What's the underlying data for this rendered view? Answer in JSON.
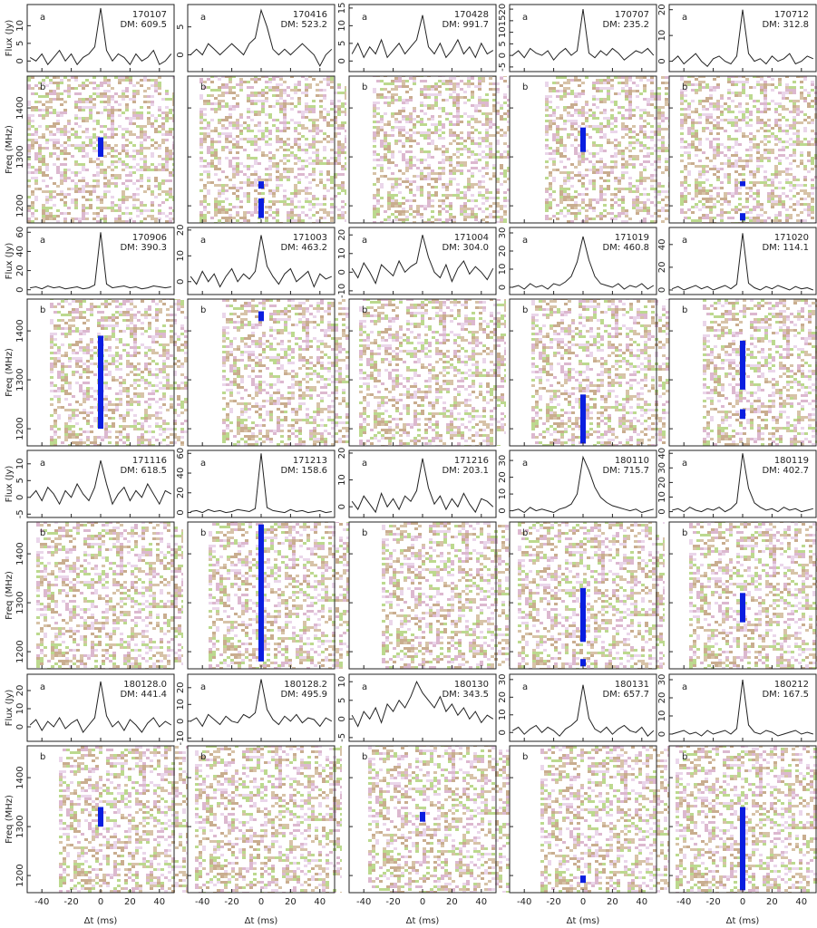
{
  "chart_data": {
    "type": "line",
    "panel_a": "a",
    "panel_b": "b",
    "flux_label": "Flux (Jy)",
    "freq_label": "Freq (MHz)",
    "xlabel": "Δt (ms)",
    "xlim": [
      -50,
      50
    ],
    "xticks": [
      -40,
      -20,
      0,
      20,
      40
    ],
    "x": [
      -48,
      -44,
      -40,
      -36,
      -32,
      -28,
      -24,
      -20,
      -16,
      -12,
      -8,
      -4,
      0,
      4,
      8,
      12,
      16,
      20,
      24,
      28,
      32,
      36,
      40,
      44,
      48
    ],
    "freq_ylim": [
      1165,
      1465
    ],
    "freq_yticks": [
      1200,
      1300,
      1400
    ],
    "line_color": "#222222",
    "burst_color": "#0a1ee0",
    "panels": [
      {
        "name": "170107",
        "dm": "DM: 609.5",
        "ylim": [
          -3,
          16
        ],
        "yticks": [
          0,
          5,
          10
        ],
        "values": [
          1,
          0,
          2,
          -1,
          1,
          3,
          0,
          2,
          -1,
          1,
          2,
          4,
          15,
          3,
          0,
          2,
          1,
          -1,
          2,
          0,
          1,
          3,
          -1,
          0,
          2
        ],
        "bursts": [
          [
            1300,
            1340
          ]
        ]
      },
      {
        "name": "170416",
        "dm": "DM: 523.2",
        "ylim": [
          -3,
          9
        ],
        "yticks": [
          0,
          5
        ],
        "values": [
          0,
          1,
          0,
          2,
          1,
          0,
          1,
          2,
          1,
          0,
          2,
          3,
          8,
          5,
          1,
          0,
          1,
          0,
          1,
          2,
          1,
          0,
          -2,
          0,
          1
        ],
        "bursts": [
          [
            1175,
            1215
          ],
          [
            1235,
            1250
          ]
        ]
      },
      {
        "name": "170428",
        "dm": "DM: 991.7",
        "ylim": [
          -3,
          16
        ],
        "yticks": [
          0,
          5,
          10,
          15
        ],
        "values": [
          2,
          5,
          1,
          4,
          2,
          6,
          1,
          3,
          5,
          2,
          4,
          6,
          13,
          4,
          2,
          5,
          1,
          3,
          6,
          2,
          4,
          1,
          5,
          2,
          3
        ],
        "bursts": []
      },
      {
        "name": "170707",
        "dm": "DM: 235.2",
        "ylim": [
          -7,
          22
        ],
        "yticks": [
          -5,
          0,
          5,
          10,
          15,
          20
        ],
        "values": [
          0,
          2,
          -1,
          3,
          1,
          0,
          2,
          -2,
          1,
          3,
          0,
          2,
          20,
          1,
          -1,
          2,
          0,
          3,
          1,
          -2,
          0,
          2,
          1,
          3,
          0
        ],
        "bursts": [
          [
            1310,
            1360
          ]
        ]
      },
      {
        "name": "170712",
        "dm": "DM: 312.8",
        "ylim": [
          -4,
          22
        ],
        "yticks": [
          0,
          10,
          20
        ],
        "values": [
          0,
          2,
          -1,
          1,
          3,
          0,
          -2,
          1,
          2,
          0,
          -1,
          2,
          20,
          3,
          0,
          1,
          -1,
          2,
          0,
          1,
          3,
          -1,
          0,
          2,
          1
        ],
        "bursts": [
          [
            1170,
            1185
          ],
          [
            1240,
            1250
          ]
        ]
      },
      {
        "name": "170906",
        "dm": "DM: 390.3",
        "ylim": [
          -5,
          65
        ],
        "yticks": [
          0,
          20,
          40,
          60
        ],
        "values": [
          2,
          3,
          1,
          4,
          2,
          3,
          1,
          2,
          3,
          1,
          2,
          5,
          60,
          6,
          2,
          3,
          4,
          2,
          3,
          1,
          2,
          4,
          3,
          2,
          3
        ],
        "bursts": [
          [
            1200,
            1390
          ]
        ]
      },
      {
        "name": "171003",
        "dm": "DM: 463.2",
        "ylim": [
          -5,
          21
        ],
        "yticks": [
          0,
          10,
          20
        ],
        "values": [
          2,
          -1,
          4,
          0,
          3,
          -2,
          2,
          5,
          0,
          3,
          1,
          4,
          18,
          6,
          2,
          -1,
          3,
          5,
          0,
          2,
          4,
          -2,
          3,
          1,
          2
        ],
        "bursts": [
          [
            1420,
            1440
          ]
        ]
      },
      {
        "name": "171004",
        "dm": "DM: 304.0",
        "ylim": [
          -12,
          24
        ],
        "yticks": [
          -10,
          0,
          10,
          20
        ],
        "values": [
          2,
          -3,
          5,
          0,
          -6,
          4,
          1,
          -2,
          6,
          0,
          3,
          5,
          20,
          8,
          0,
          -3,
          4,
          -5,
          2,
          6,
          -1,
          3,
          0,
          -4,
          2
        ],
        "bursts": []
      },
      {
        "name": "171019",
        "dm": "DM: 460.8",
        "ylim": [
          -4,
          33
        ],
        "yticks": [
          0,
          10,
          20,
          30
        ],
        "values": [
          0,
          1,
          -1,
          2,
          0,
          1,
          -1,
          2,
          1,
          3,
          6,
          14,
          28,
          15,
          6,
          2,
          1,
          0,
          2,
          -1,
          1,
          0,
          2,
          -1,
          1
        ],
        "bursts": [
          [
            1170,
            1270
          ]
        ]
      },
      {
        "name": "171020",
        "dm": "DM: 114.1",
        "ylim": [
          -4,
          55
        ],
        "yticks": [
          0,
          20,
          40
        ],
        "values": [
          1,
          3,
          0,
          2,
          4,
          1,
          3,
          0,
          2,
          4,
          1,
          5,
          50,
          6,
          2,
          0,
          3,
          1,
          4,
          2,
          0,
          3,
          1,
          2,
          0
        ],
        "bursts": [
          [
            1220,
            1240
          ],
          [
            1280,
            1380
          ]
        ]
      },
      {
        "name": "171116",
        "dm": "DM: 618.5",
        "ylim": [
          -6,
          14
        ],
        "yticks": [
          -5,
          0,
          5,
          10
        ],
        "values": [
          0,
          2,
          -1,
          3,
          1,
          -2,
          2,
          0,
          4,
          1,
          -1,
          3,
          11,
          4,
          -2,
          1,
          3,
          -1,
          2,
          0,
          4,
          1,
          -2,
          2,
          1
        ],
        "bursts": []
      },
      {
        "name": "171213",
        "dm": "DM: 158.6",
        "ylim": [
          -5,
          63
        ],
        "yticks": [
          0,
          20,
          40,
          60
        ],
        "values": [
          1,
          2,
          0,
          3,
          1,
          2,
          0,
          1,
          3,
          2,
          1,
          4,
          60,
          5,
          2,
          1,
          0,
          3,
          1,
          2,
          0,
          1,
          2,
          0,
          1
        ],
        "bursts": [
          [
            1180,
            1460
          ]
        ]
      },
      {
        "name": "171216",
        "dm": "DM: 203.1",
        "ylim": [
          -4,
          21
        ],
        "yticks": [
          0,
          10,
          20
        ],
        "values": [
          2,
          -1,
          4,
          1,
          -2,
          5,
          0,
          3,
          -1,
          4,
          2,
          6,
          18,
          7,
          1,
          4,
          -1,
          3,
          0,
          5,
          1,
          -2,
          3,
          2,
          0
        ],
        "bursts": []
      },
      {
        "name": "180110",
        "dm": "DM: 715.7",
        "ylim": [
          -4,
          36
        ],
        "yticks": [
          0,
          10,
          20,
          30
        ],
        "values": [
          0,
          1,
          -1,
          2,
          0,
          1,
          0,
          -1,
          1,
          2,
          4,
          10,
          32,
          24,
          14,
          8,
          5,
          3,
          2,
          1,
          0,
          1,
          -1,
          0,
          1
        ],
        "bursts": [
          [
            1170,
            1185
          ],
          [
            1220,
            1330
          ]
        ]
      },
      {
        "name": "180119",
        "dm": "DM: 402.7",
        "ylim": [
          -4,
          42
        ],
        "yticks": [
          0,
          10,
          20,
          30,
          40
        ],
        "values": [
          1,
          2,
          0,
          3,
          1,
          0,
          2,
          1,
          3,
          0,
          2,
          6,
          40,
          16,
          6,
          3,
          1,
          2,
          0,
          3,
          1,
          2,
          0,
          1,
          2
        ],
        "bursts": [
          [
            1260,
            1320
          ]
        ]
      },
      {
        "name": "180128.0",
        "dm": "DM: 441.4",
        "ylim": [
          -8,
          29
        ],
        "yticks": [
          0,
          10,
          20
        ],
        "values": [
          1,
          4,
          -2,
          3,
          0,
          5,
          -1,
          2,
          4,
          -3,
          1,
          5,
          25,
          6,
          0,
          3,
          -2,
          4,
          1,
          -3,
          2,
          5,
          0,
          3,
          1
        ],
        "bursts": [
          [
            1300,
            1340
          ]
        ]
      },
      {
        "name": "180128.2",
        "dm": "DM: 495.9",
        "ylim": [
          -12,
          28
        ],
        "yticks": [
          -10,
          0,
          10,
          20
        ],
        "values": [
          0,
          2,
          -3,
          4,
          1,
          -2,
          3,
          0,
          -1,
          4,
          2,
          5,
          25,
          7,
          1,
          -2,
          3,
          0,
          4,
          -1,
          2,
          1,
          -3,
          2,
          0
        ],
        "bursts": []
      },
      {
        "name": "180130",
        "dm": "DM: 343.5",
        "ylim": [
          -6,
          12
        ],
        "yticks": [
          -5,
          0,
          5,
          10
        ],
        "values": [
          1,
          -2,
          2,
          0,
          3,
          -1,
          4,
          2,
          5,
          3,
          6,
          10,
          7,
          5,
          3,
          6,
          2,
          4,
          1,
          3,
          0,
          2,
          -1,
          1,
          0
        ],
        "bursts": [
          [
            1310,
            1330
          ]
        ]
      },
      {
        "name": "180131",
        "dm": "DM: 657.7",
        "ylim": [
          -5,
          33
        ],
        "yticks": [
          0,
          10,
          20,
          30
        ],
        "values": [
          1,
          3,
          -1,
          2,
          4,
          0,
          3,
          1,
          -2,
          2,
          4,
          7,
          27,
          8,
          2,
          0,
          3,
          -1,
          2,
          4,
          1,
          0,
          3,
          -2,
          1
        ],
        "bursts": [
          [
            1185,
            1200
          ]
        ]
      },
      {
        "name": "180212",
        "dm": "DM: 167.5",
        "ylim": [
          -4,
          33
        ],
        "yticks": [
          0,
          10,
          20,
          30
        ],
        "values": [
          0,
          1,
          2,
          0,
          1,
          -1,
          2,
          0,
          1,
          2,
          0,
          3,
          30,
          5,
          1,
          0,
          2,
          1,
          -1,
          0,
          1,
          2,
          0,
          1,
          0
        ],
        "bursts": [
          [
            1170,
            1340
          ]
        ]
      }
    ]
  }
}
